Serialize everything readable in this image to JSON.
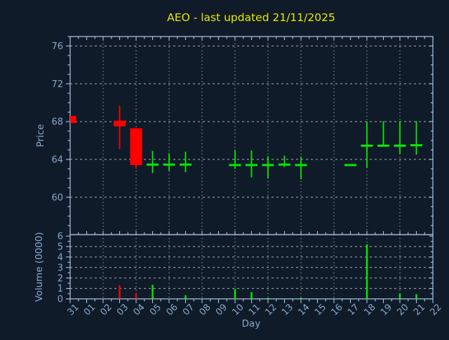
{
  "colors": {
    "bg": "#101b2a",
    "spine": "#a9c7e4",
    "text": "#87a8ca",
    "grid": "#c8c8c8",
    "title": "#e8e800",
    "up": "#00ee00",
    "down": "#ff0000"
  },
  "chart_data": [
    {
      "type": "candlestick",
      "title": "AEO - last updated 21/11/2025",
      "xlabel": "Day",
      "ylabel": "Price",
      "ylim": [
        56,
        77
      ],
      "yticks": [
        60,
        64,
        68,
        72,
        76
      ],
      "grid": true,
      "grid_days": [
        "02",
        "04",
        "06",
        "08",
        "10",
        "12",
        "14",
        "16",
        "18",
        "20"
      ],
      "categories": [
        "31",
        "01",
        "02",
        "03",
        "04",
        "05",
        "06",
        "07",
        "08",
        "09",
        "10",
        "11",
        "12",
        "13",
        "14",
        "15",
        "16",
        "17",
        "18",
        "19",
        "20",
        "21",
        "22"
      ],
      "ohlc": [
        {
          "day": "31",
          "open": 68.6,
          "high": 68.6,
          "low": 67.85,
          "close": 67.85,
          "direction": "down"
        },
        {
          "day": "03",
          "open": 68.1,
          "high": 69.7,
          "low": 65.1,
          "close": 67.5,
          "direction": "down"
        },
        {
          "day": "04",
          "open": 67.3,
          "high": 67.3,
          "low": 63.0,
          "close": 63.4,
          "direction": "down"
        },
        {
          "day": "05",
          "open": 63.45,
          "high": 64.9,
          "low": 62.55,
          "close": 63.45,
          "direction": "up"
        },
        {
          "day": "06",
          "open": 63.45,
          "high": 64.65,
          "low": 62.8,
          "close": 63.45,
          "direction": "up"
        },
        {
          "day": "07",
          "open": 63.45,
          "high": 64.8,
          "low": 62.65,
          "close": 63.45,
          "direction": "up"
        },
        {
          "day": "10",
          "open": 63.4,
          "high": 65.0,
          "low": 63.0,
          "close": 63.4,
          "direction": "up"
        },
        {
          "day": "11",
          "open": 63.4,
          "high": 64.95,
          "low": 62.1,
          "close": 63.4,
          "direction": "up"
        },
        {
          "day": "12",
          "open": 63.4,
          "high": 64.35,
          "low": 62.0,
          "close": 63.4,
          "direction": "up"
        },
        {
          "day": "13",
          "open": 63.45,
          "high": 64.4,
          "low": 63.2,
          "close": 63.45,
          "direction": "up"
        },
        {
          "day": "14",
          "open": 63.4,
          "high": 64.3,
          "low": 61.9,
          "close": 63.4,
          "direction": "up"
        },
        {
          "day": "17",
          "open": 63.4,
          "high": 63.4,
          "low": 63.4,
          "close": 63.4,
          "direction": "up"
        },
        {
          "day": "18",
          "open": 65.45,
          "high": 68.0,
          "low": 63.1,
          "close": 65.45,
          "direction": "up"
        },
        {
          "day": "19",
          "open": 65.45,
          "high": 68.05,
          "low": 65.45,
          "close": 65.45,
          "direction": "up"
        },
        {
          "day": "20",
          "open": 65.45,
          "high": 68.05,
          "low": 64.6,
          "close": 65.45,
          "direction": "up"
        },
        {
          "day": "21",
          "open": 65.5,
          "high": 68.05,
          "low": 64.5,
          "close": 65.5,
          "direction": "up"
        }
      ]
    },
    {
      "type": "bar",
      "ylabel": "Volume (0000)",
      "ylim": [
        0,
        6.1
      ],
      "yticks": [
        0,
        1,
        2,
        3,
        4,
        5,
        6
      ],
      "grid": true,
      "bars": [
        {
          "day": "03",
          "value": 1.3,
          "direction": "down"
        },
        {
          "day": "04",
          "value": 0.55,
          "direction": "down"
        },
        {
          "day": "05",
          "value": 1.35,
          "direction": "up"
        },
        {
          "day": "07",
          "value": 0.35,
          "direction": "up"
        },
        {
          "day": "10",
          "value": 0.95,
          "direction": "up"
        },
        {
          "day": "11",
          "value": 0.65,
          "direction": "up"
        },
        {
          "day": "12",
          "value": 0.1,
          "direction": "up"
        },
        {
          "day": "14",
          "value": 0.1,
          "direction": "up"
        },
        {
          "day": "18",
          "value": 5.2,
          "direction": "up"
        },
        {
          "day": "20",
          "value": 0.5,
          "direction": "up"
        },
        {
          "day": "21",
          "value": 0.45,
          "direction": "up"
        }
      ]
    }
  ]
}
